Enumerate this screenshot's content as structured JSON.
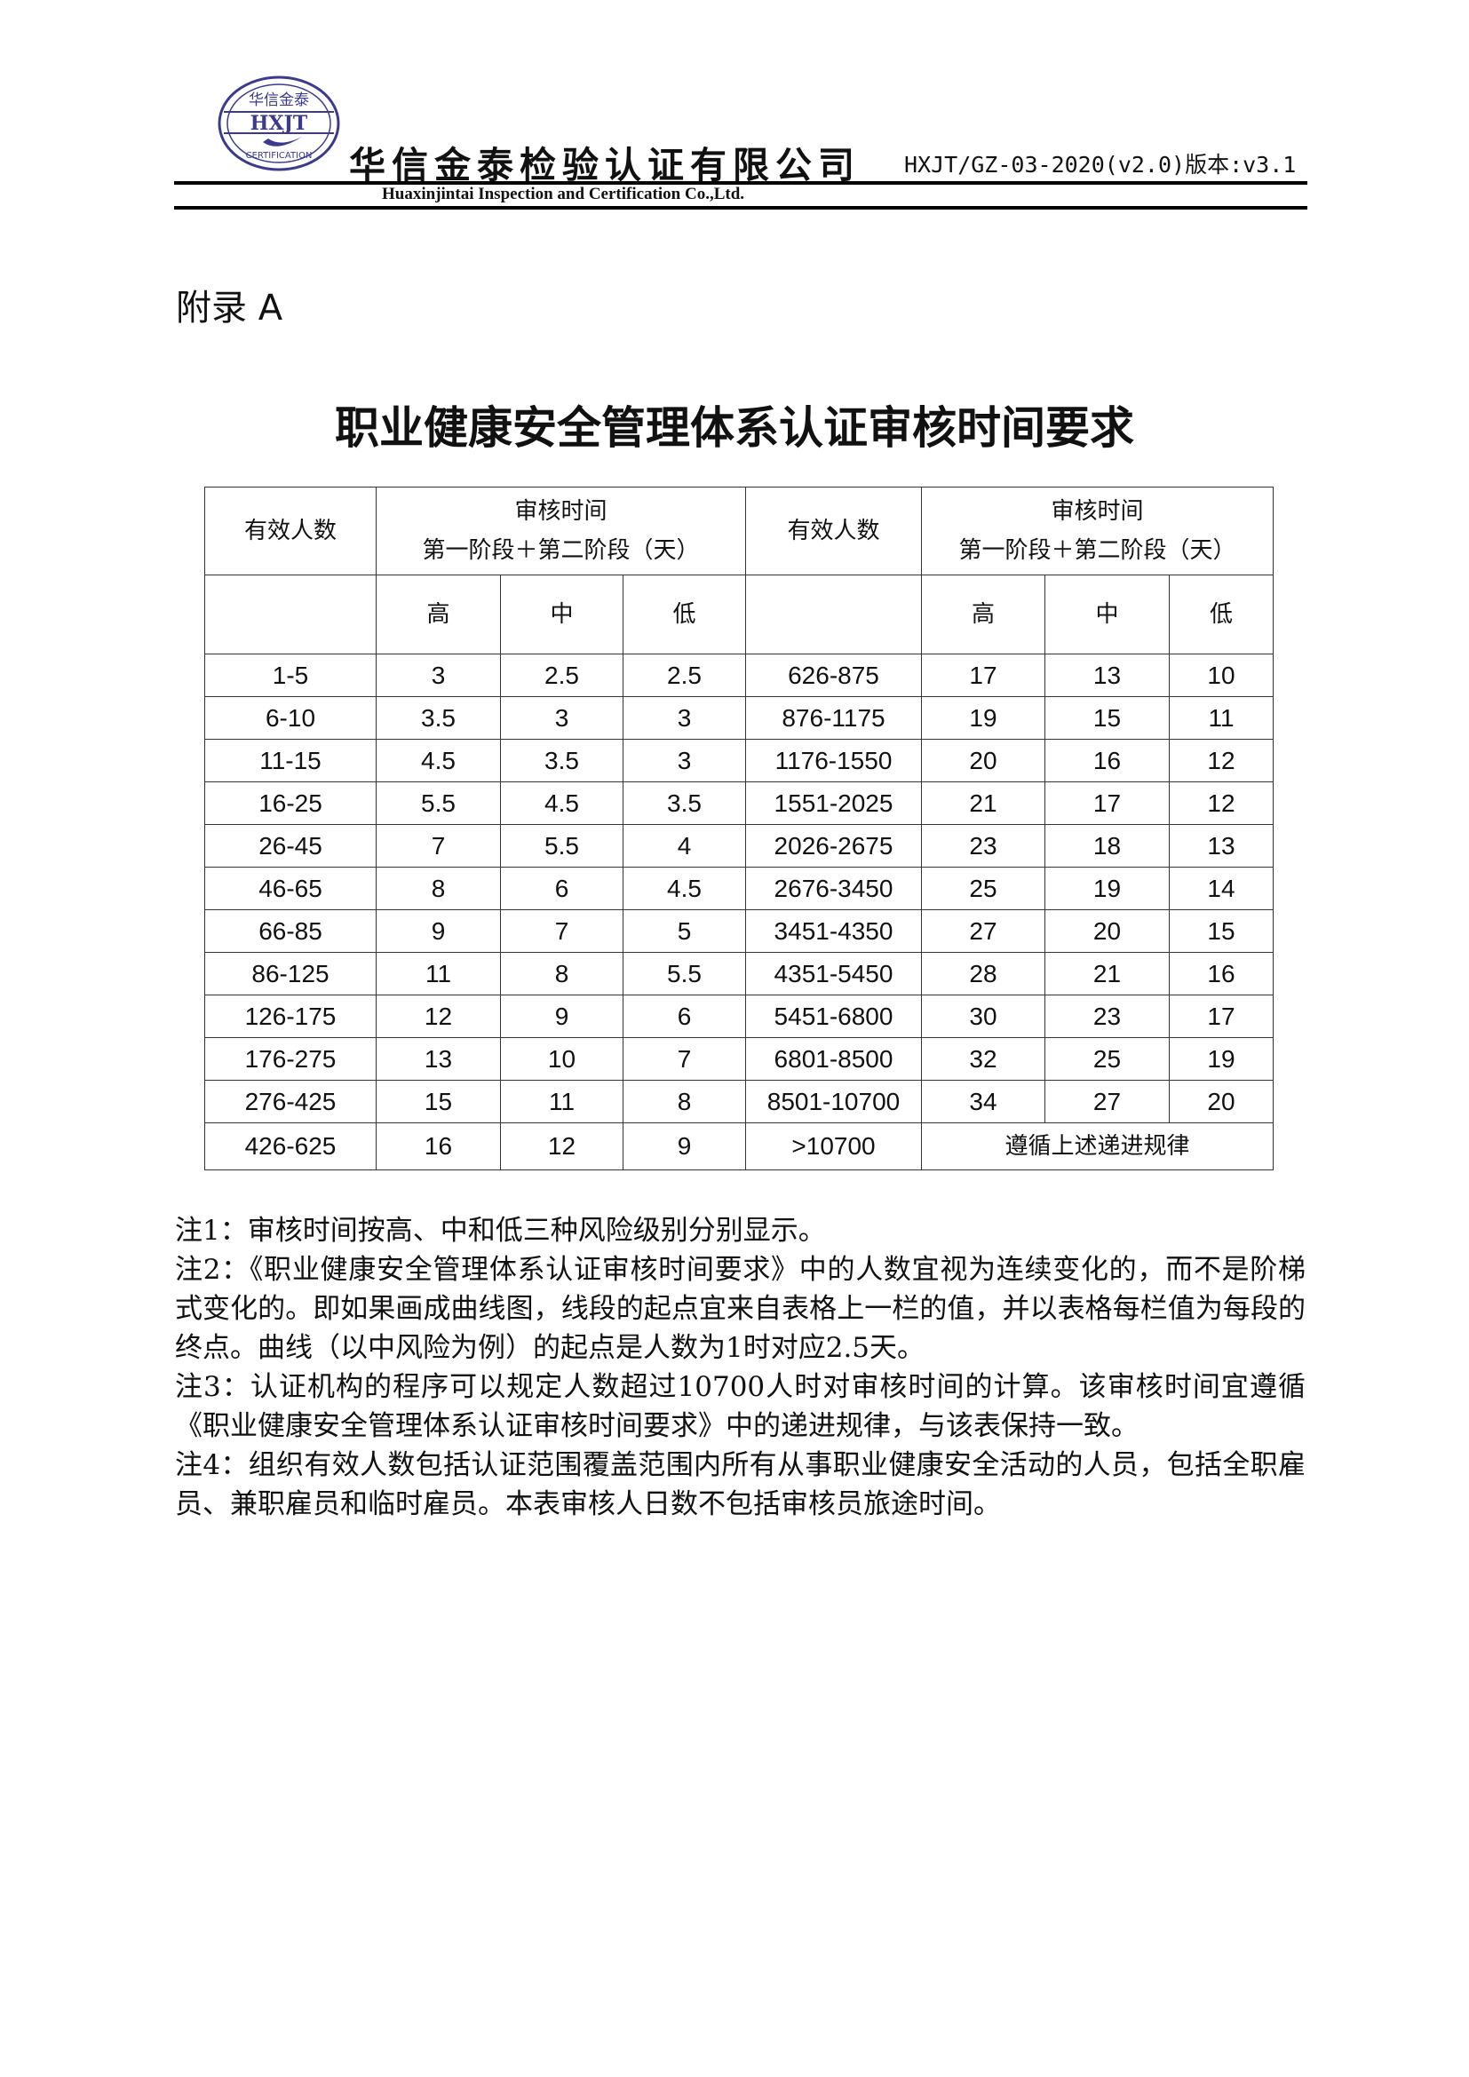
{
  "header": {
    "logo_text": {
      "top": "华信金泰",
      "middle": "HXJT",
      "bottom": "CERTIFICATION"
    },
    "company_cn": "华信金泰检验认证有限公司",
    "doc_code": "HXJT/GZ-03-2020(v2.0)版本:v3.1",
    "company_en": "Huaxinjintai Inspection and Certification Co.,Ltd.",
    "brand_color": "#3b3a8f"
  },
  "appendix": "附录 A",
  "title": "职业健康安全管理体系认证审核时间要求",
  "table": {
    "col_people": "有效人数",
    "col_time_line1": "审核时间",
    "col_time_line2": "第一阶段＋第二阶段（天）",
    "levels": [
      "高",
      "中",
      "低"
    ],
    "rows": [
      [
        "1-5",
        "3",
        "2.5",
        "2.5",
        "626-875",
        "17",
        "13",
        "10"
      ],
      [
        "6-10",
        "3.5",
        "3",
        "3",
        "876-1175",
        "19",
        "15",
        "11"
      ],
      [
        "11-15",
        "4.5",
        "3.5",
        "3",
        "1176-1550",
        "20",
        "16",
        "12"
      ],
      [
        "16-25",
        "5.5",
        "4.5",
        "3.5",
        "1551-2025",
        "21",
        "17",
        "12"
      ],
      [
        "26-45",
        "7",
        "5.5",
        "4",
        "2026-2675",
        "23",
        "18",
        "13"
      ],
      [
        "46-65",
        "8",
        "6",
        "4.5",
        "2676-3450",
        "25",
        "19",
        "14"
      ],
      [
        "66-85",
        "9",
        "7",
        "5",
        "3451-4350",
        "27",
        "20",
        "15"
      ],
      [
        "86-125",
        "11",
        "8",
        "5.5",
        "4351-5450",
        "28",
        "21",
        "16"
      ],
      [
        "126-175",
        "12",
        "9",
        "6",
        "5451-6800",
        "30",
        "23",
        "17"
      ],
      [
        "176-275",
        "13",
        "10",
        "7",
        "6801-8500",
        "32",
        "25",
        "19"
      ],
      [
        "276-425",
        "15",
        "11",
        "8",
        "8501-10700",
        "34",
        "27",
        "20"
      ]
    ],
    "last_row": [
      "426-625",
      "16",
      "12",
      "9",
      ">10700",
      "遵循上述递进规律"
    ]
  },
  "notes": [
    "注1：审核时间按高、中和低三种风险级别分别显示。",
    "注2：《职业健康安全管理体系认证审核时间要求》中的人数宜视为连续变化的，而不是阶梯式变化的。即如果画成曲线图，线段的起点宜来自表格上一栏的值，并以表格每栏值为每段的终点。曲线（以中风险为例）的起点是人数为1时对应2.5天。",
    "注3：认证机构的程序可以规定人数超过10700人时对审核时间的计算。该审核时间宜遵循《职业健康安全管理体系认证审核时间要求》中的递进规律，与该表保持一致。",
    "注4：组织有效人数包括认证范围覆盖范围内所有从事职业健康安全活动的人员，包括全职雇员、兼职雇员和临时雇员。本表审核人日数不包括审核员旅途时间。"
  ]
}
